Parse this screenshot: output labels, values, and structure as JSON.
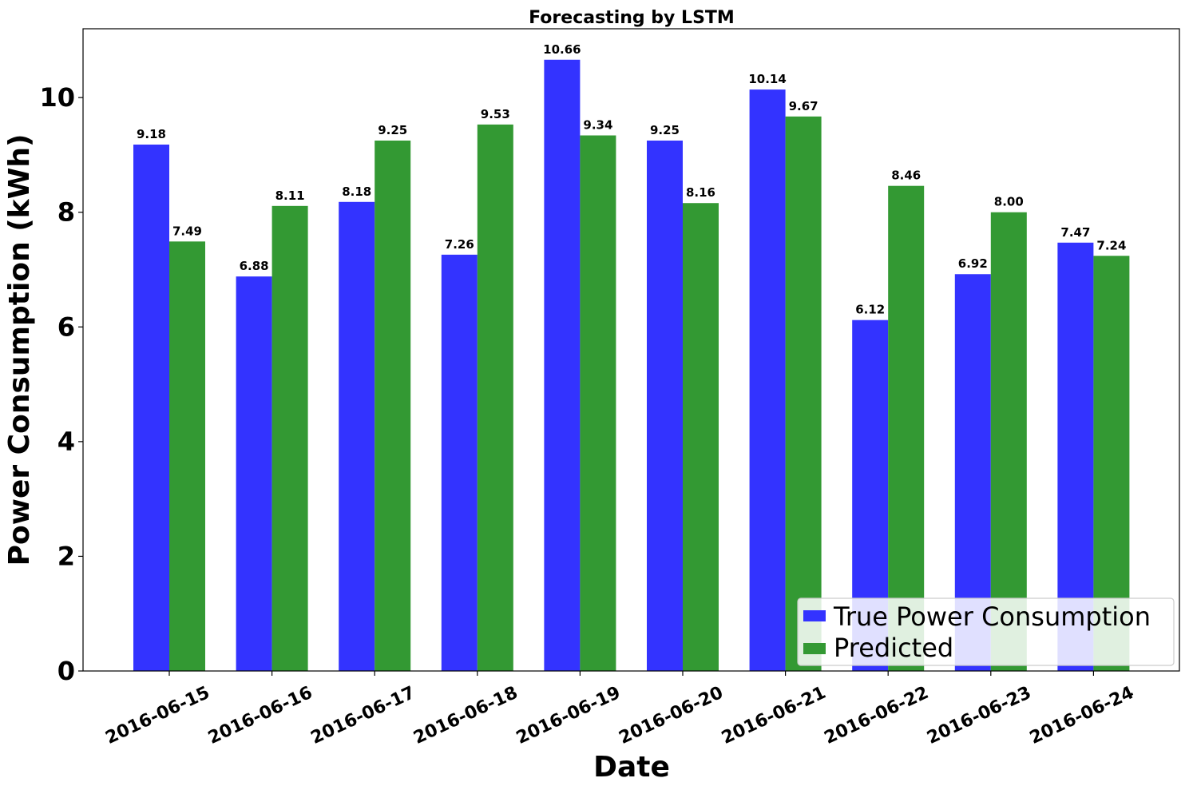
{
  "chart_data": {
    "type": "bar",
    "title": "Forecasting by LSTM",
    "xlabel": "Date",
    "ylabel": "Power Consumption (kWh)",
    "ylim": [
      0,
      11.2
    ],
    "yticks": [
      0,
      2,
      4,
      6,
      8,
      10
    ],
    "grid": false,
    "legend_position": "bottom-right",
    "categories": [
      "2016-06-15",
      "2016-06-16",
      "2016-06-17",
      "2016-06-18",
      "2016-06-19",
      "2016-06-20",
      "2016-06-21",
      "2016-06-22",
      "2016-06-23",
      "2016-06-24"
    ],
    "series": [
      {
        "name": "True Power Consumption",
        "color": "#3333ff",
        "values": [
          9.18,
          6.88,
          8.18,
          7.26,
          10.66,
          9.25,
          10.14,
          6.12,
          6.92,
          7.47
        ],
        "labels": [
          "9.18",
          "6.88",
          "8.18",
          "7.26",
          "10.66",
          "9.25",
          "10.14",
          "6.12",
          "6.92",
          "7.47"
        ]
      },
      {
        "name": "Predicted",
        "color": "#339933",
        "values": [
          7.49,
          8.11,
          9.25,
          9.53,
          9.34,
          8.16,
          9.67,
          8.46,
          8.0,
          7.24
        ],
        "labels": [
          "7.49",
          "8.11",
          "9.25",
          "9.53",
          "9.34",
          "8.16",
          "9.67",
          "8.46",
          "8.00",
          "7.24"
        ]
      }
    ]
  }
}
